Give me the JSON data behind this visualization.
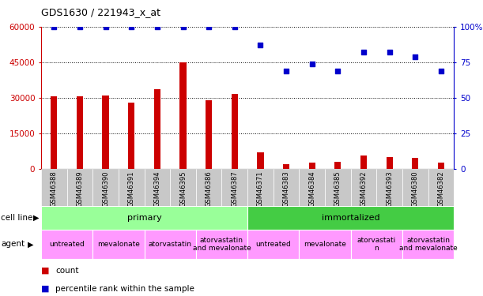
{
  "title": "GDS1630 / 221943_x_at",
  "samples": [
    "GSM46388",
    "GSM46389",
    "GSM46390",
    "GSM46391",
    "GSM46394",
    "GSM46395",
    "GSM46386",
    "GSM46387",
    "GSM46371",
    "GSM46383",
    "GSM46384",
    "GSM46385",
    "GSM46392",
    "GSM46393",
    "GSM46380",
    "GSM46382"
  ],
  "counts": [
    30500,
    30500,
    31000,
    28000,
    33500,
    45000,
    29000,
    31500,
    7000,
    2000,
    2500,
    3000,
    5500,
    5000,
    4500,
    2500
  ],
  "percentile": [
    100,
    100,
    100,
    100,
    100,
    100,
    100,
    100,
    87,
    69,
    74,
    69,
    82,
    82,
    79,
    69
  ],
  "bar_color": "#cc0000",
  "dot_color": "#0000cc",
  "ylim_left": [
    0,
    60000
  ],
  "ylim_right": [
    0,
    100
  ],
  "yticks_left": [
    0,
    15000,
    30000,
    45000,
    60000
  ],
  "yticks_right": [
    0,
    25,
    50,
    75,
    100
  ],
  "cell_line": [
    {
      "label": "primary",
      "start": 0,
      "end": 8,
      "color": "#99ff99"
    },
    {
      "label": "immortalized",
      "start": 8,
      "end": 16,
      "color": "#44cc44"
    }
  ],
  "agent_groups": [
    {
      "label": "untreated",
      "start": 0,
      "end": 2
    },
    {
      "label": "mevalonate",
      "start": 2,
      "end": 4
    },
    {
      "label": "atorvastatin",
      "start": 4,
      "end": 6
    },
    {
      "label": "atorvastatin\nand mevalonate",
      "start": 6,
      "end": 8
    },
    {
      "label": "untreated",
      "start": 8,
      "end": 10
    },
    {
      "label": "mevalonate",
      "start": 10,
      "end": 12
    },
    {
      "label": "atorvastati\nn",
      "start": 12,
      "end": 14
    },
    {
      "label": "atorvastatin\nand mevalonate",
      "start": 14,
      "end": 16
    }
  ],
  "agent_color": "#ff99ff",
  "bg_color": "#ffffff",
  "tick_bg": "#c8c8c8"
}
